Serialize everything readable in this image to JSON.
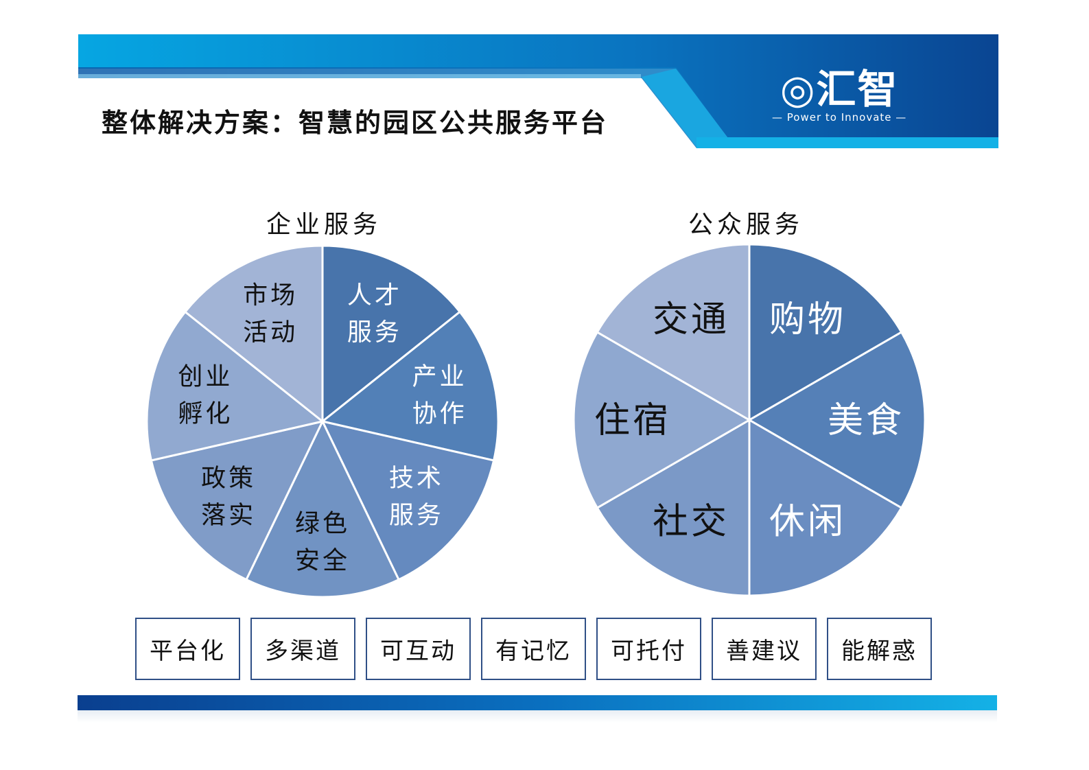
{
  "header": {
    "title": "整体解决方案：智慧的园区公共服务平台",
    "logo_text": "汇智",
    "logo_tagline": "— Power to Innovate —"
  },
  "enterprise": {
    "title": "企业服务",
    "slices": [
      {
        "lines": [
          "人才",
          "服务"
        ],
        "color": "#4874ab",
        "text_color": "#ffffff"
      },
      {
        "lines": [
          "产业",
          "协作"
        ],
        "color": "#5280b7",
        "text_color": "#ffffff"
      },
      {
        "lines": [
          "技术",
          "服务"
        ],
        "color": "#658abf",
        "text_color": "#ffffff"
      },
      {
        "lines": [
          "绿色",
          "安全"
        ],
        "color": "#7193c3",
        "text_color": "#111111"
      },
      {
        "lines": [
          "政策",
          "落实"
        ],
        "color": "#809cc8",
        "text_color": "#111111"
      },
      {
        "lines": [
          "创业",
          "孵化"
        ],
        "color": "#91a9d0",
        "text_color": "#111111"
      },
      {
        "lines": [
          "市场",
          "活动"
        ],
        "color": "#a2b4d6",
        "text_color": "#111111"
      }
    ]
  },
  "public": {
    "title": "公众服务",
    "slices": [
      {
        "lines": [
          "购物"
        ],
        "color": "#4874ab",
        "text_color": "#ffffff"
      },
      {
        "lines": [
          "美食"
        ],
        "color": "#5580b7",
        "text_color": "#ffffff"
      },
      {
        "lines": [
          "休闲"
        ],
        "color": "#6a8dc1",
        "text_color": "#ffffff"
      },
      {
        "lines": [
          "社交"
        ],
        "color": "#7b99c7",
        "text_color": "#111111"
      },
      {
        "lines": [
          "住宿"
        ],
        "color": "#8fa8d0",
        "text_color": "#111111"
      },
      {
        "lines": [
          "交通"
        ],
        "color": "#a2b4d6",
        "text_color": "#111111"
      }
    ]
  },
  "features": [
    "平台化",
    "多渠道",
    "可互动",
    "有记忆",
    "可托付",
    "善建议",
    "能解惑"
  ]
}
